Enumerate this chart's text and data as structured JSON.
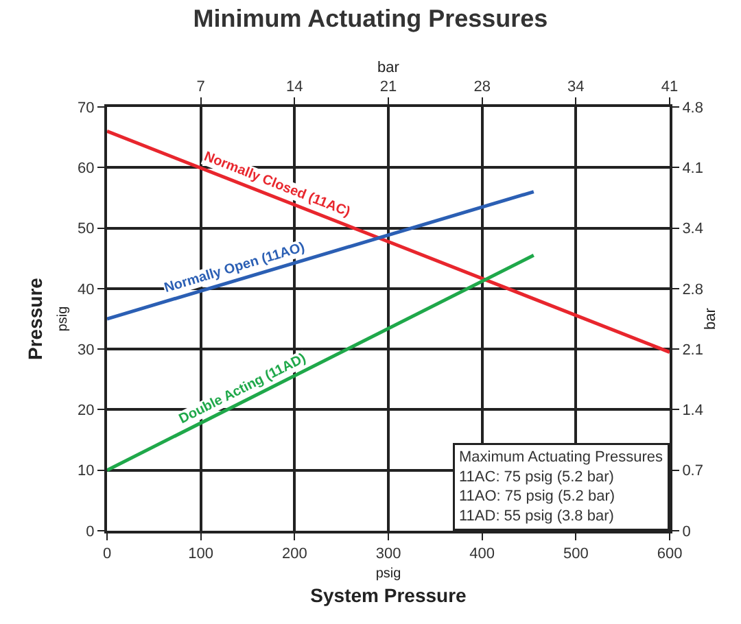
{
  "chart_data": {
    "type": "line",
    "title": "Minimum Actuating Pressures",
    "xlabel": "psig\nSystem Pressure",
    "ylabel": "Pressure\npsig",
    "x2label": "bar",
    "y2label": "bar",
    "series": [
      {
        "name": "Normally Closed (11AC)",
        "color": "#e8262d",
        "x": [
          0,
          600
        ],
        "values": [
          66,
          29.5
        ]
      },
      {
        "name": "Normally Open (11AO)",
        "color": "#2b5fb4",
        "x": [
          0,
          455
        ],
        "values": [
          35,
          56
        ]
      },
      {
        "name": "Double Acting (11AD)",
        "color": "#1fa84a",
        "x": [
          0,
          455
        ],
        "values": [
          10,
          45.5
        ]
      }
    ],
    "xlim": [
      0,
      600
    ],
    "xticks": [
      0,
      100,
      200,
      300,
      400,
      500,
      600
    ],
    "ylim": [
      0,
      70
    ],
    "yticks": [
      0,
      10,
      20,
      30,
      40,
      50,
      60,
      70
    ],
    "x2lim": [
      0,
      41.4
    ],
    "x2ticks": [
      {
        "value": 6.9,
        "label": "7"
      },
      {
        "value": 13.8,
        "label": "14"
      },
      {
        "value": 20.7,
        "label": "21"
      },
      {
        "value": 27.6,
        "label": "28"
      },
      {
        "value": 34.5,
        "label": "34"
      },
      {
        "value": 41.4,
        "label": "41"
      }
    ],
    "y2lim": [
      0,
      4.83
    ],
    "y2ticks": [
      0,
      {
        "value": 0.69,
        "label": "0.7"
      },
      {
        "value": 1.38,
        "label": "1.4"
      },
      {
        "value": 2.07,
        "label": "2.1"
      },
      {
        "value": 2.76,
        "label": "2.8"
      },
      {
        "value": 3.45,
        "label": "3.4"
      },
      {
        "value": 4.14,
        "label": "4.1"
      },
      {
        "value": 4.83,
        "label": "4.8"
      }
    ],
    "grid": true,
    "legend": false,
    "marker": "none",
    "line_style": "solid",
    "annotations": [
      "Maximum Actuating Pressures\n11AC: 75 psig (5.2 bar)\n11AO: 75 psig (5.2 bar)\n11AD: 55 psig (3.8 bar)"
    ]
  }
}
